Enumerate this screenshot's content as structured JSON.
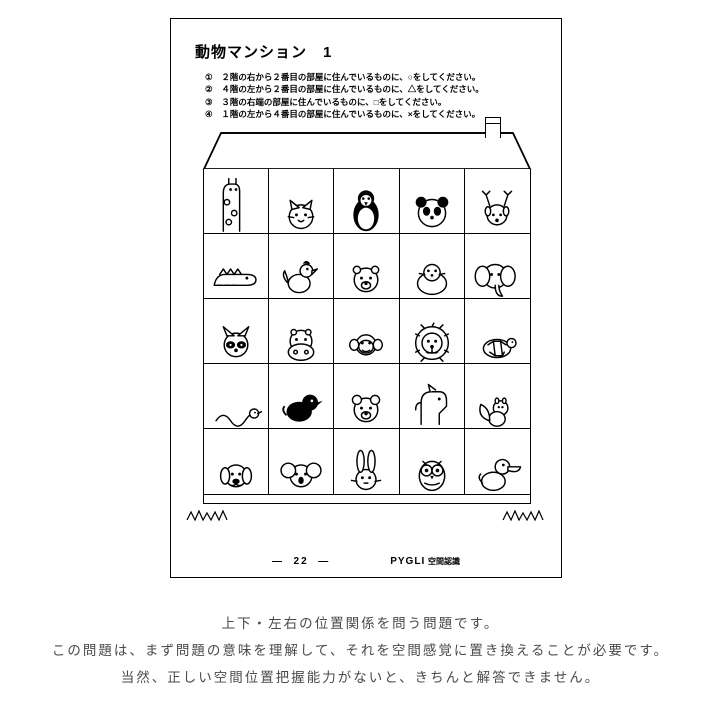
{
  "worksheet": {
    "title": "動物マンション　1",
    "instructions": [
      {
        "num": "①",
        "text": "２階の右から２番目の部屋に住んでいるものに、○をしてください。"
      },
      {
        "num": "②",
        "text": "４階の左から２番目の部屋に住んでいるものに、△をしてください。"
      },
      {
        "num": "③",
        "text": "３階の右端の部屋に住んでいるものに、□をしてください。"
      },
      {
        "num": "④",
        "text": "１階の左から４番目の部屋に住んでいるものに、×をしてください。"
      }
    ],
    "rows": 5,
    "cols": 5,
    "animals": [
      [
        "giraffe",
        "cat",
        "penguin",
        "panda",
        "deer"
      ],
      [
        "crocodile",
        "rooster",
        "polarbear",
        "seal",
        "elephant"
      ],
      [
        "raccoon",
        "hippo",
        "monkey",
        "lion",
        "turtle"
      ],
      [
        "snake",
        "crow",
        "bear",
        "horse",
        "squirrel"
      ],
      [
        "dog",
        "koala",
        "rabbit",
        "owl",
        "pelican"
      ]
    ],
    "footer": {
      "page": "22",
      "brand": "PYGLI",
      "category": "空間認識"
    },
    "colors": {
      "line": "#000000",
      "bg": "#ffffff",
      "caption": "#4a4a4a"
    }
  },
  "caption": {
    "line1": "上下・左右の位置関係を問う問題です。",
    "line2": "この問題は、まず問題の意味を理解して、それを空間感覚に置き換えることが必要です。",
    "line3": "当然、正しい空間位置把握能力がないと、きちんと解答できません。"
  }
}
